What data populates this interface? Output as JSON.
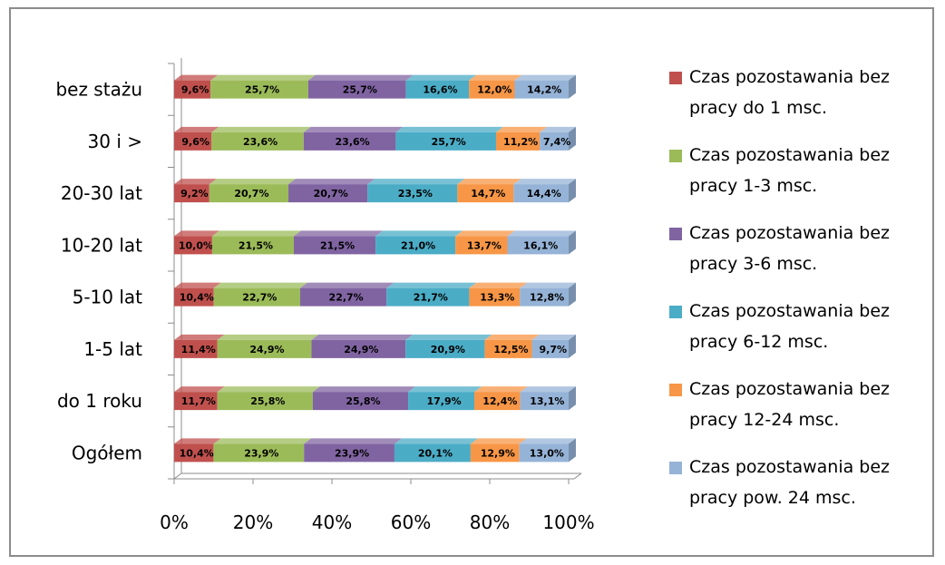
{
  "chart_data": {
    "type": "bar",
    "orientation": "horizontal",
    "stacking": "percent",
    "categories": [
      "Ogółem",
      "do 1 roku",
      "1-5 lat",
      "5-10 lat",
      "10-20 lat",
      "20-30 lat",
      "30 i >",
      "bez stażu"
    ],
    "x_ticks": [
      "0%",
      "20%",
      "40%",
      "60%",
      "80%",
      "100%"
    ],
    "xlim": [
      0,
      100
    ],
    "series": [
      {
        "name": "Czas pozostawania bez pracy do 1 msc.",
        "color": "#c0504d",
        "values": [
          10.4,
          11.7,
          11.4,
          10.4,
          10.0,
          9.2,
          9.6,
          9.6
        ],
        "labels": [
          "10,4%",
          "11,7%",
          "11,4%",
          "10,4%",
          "10,0%",
          "9,2%",
          "9,6%",
          "9,6%"
        ]
      },
      {
        "name": "Czas pozostawania bez pracy 1-3 msc.",
        "color": "#9bbb59",
        "values": [
          23.9,
          25.8,
          24.9,
          22.7,
          21.5,
          20.7,
          23.6,
          25.7
        ],
        "labels": [
          "23,9%",
          "25,8%",
          "24,9%",
          "22,7%",
          "21,5%",
          "20,7%",
          "23,6%",
          "25,7%"
        ]
      },
      {
        "name": "Czas pozostawania bez pracy 3-6 msc.",
        "color": "#8064a2",
        "values": [
          23.9,
          25.8,
          24.9,
          22.7,
          21.5,
          20.7,
          23.6,
          25.7
        ],
        "labels": [
          "23,9%",
          "25,8%",
          "24,9%",
          "22,7%",
          "21,5%",
          "20,7%",
          "23,6%",
          "25,7%"
        ]
      },
      {
        "name": "Czas pozostawania bez pracy 6-12 msc.",
        "color": "#4bacc6",
        "values": [
          20.1,
          17.9,
          20.9,
          21.7,
          21.0,
          23.5,
          25.7,
          16.6
        ],
        "labels": [
          "20,1%",
          "17,9%",
          "20,9%",
          "21,7%",
          "21,0%",
          "23,5%",
          "25,7%",
          "16,6%"
        ]
      },
      {
        "name": "Czas pozostawania bez pracy 12-24 msc.",
        "color": "#f79646",
        "values": [
          12.9,
          12.4,
          12.5,
          13.3,
          13.7,
          14.7,
          11.2,
          12.0
        ],
        "labels": [
          "12,9%",
          "12,4%",
          "12,5%",
          "13,3%",
          "13,7%",
          "14,7%",
          "11,2%",
          "12,0%"
        ]
      },
      {
        "name": "Czas pozostawania bez pracy pow. 24 msc.",
        "color": "#95b3d7",
        "values": [
          13.0,
          13.1,
          9.7,
          12.8,
          16.1,
          14.4,
          7.4,
          14.2
        ],
        "labels": [
          "13,0%",
          "13,1%",
          "9,7%",
          "12,8%",
          "16,1%",
          "14,4%",
          "7,4%",
          "14,2%"
        ]
      }
    ],
    "legend": {
      "position": "right",
      "entries": [
        {
          "line1": "Czas pozostawania bez",
          "line2": "pracy do 1 msc."
        },
        {
          "line1": "Czas pozostawania bez",
          "line2": "pracy 1-3 msc."
        },
        {
          "line1": "Czas pozostawania bez",
          "line2": "pracy 3-6 msc."
        },
        {
          "line1": "Czas pozostawania bez",
          "line2": "pracy 6-12 msc."
        },
        {
          "line1": "Czas pozostawania bez",
          "line2": "pracy 12-24 msc."
        },
        {
          "line1": "Czas pozostawania bez",
          "line2": "pracy pow. 24 msc."
        }
      ]
    },
    "grid": false,
    "title": "",
    "xlabel": "",
    "ylabel": ""
  }
}
